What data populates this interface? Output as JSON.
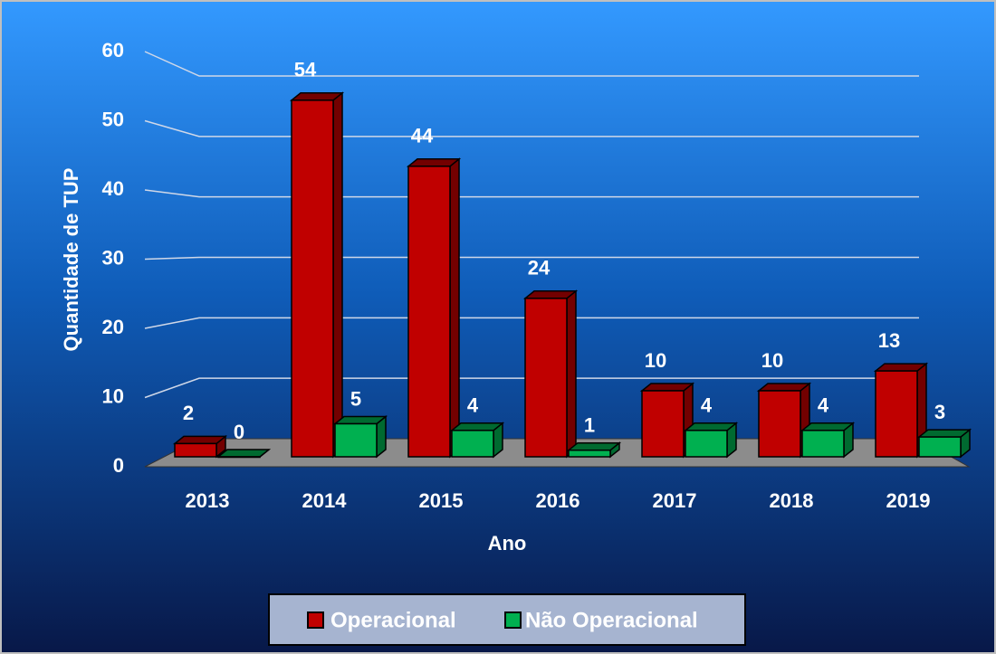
{
  "chart_data": {
    "type": "bar",
    "categories": [
      "2013",
      "2014",
      "2015",
      "2016",
      "2017",
      "2018",
      "2019"
    ],
    "series": [
      {
        "name": "Operacional",
        "color": "#c00000",
        "values": [
          2,
          54,
          44,
          24,
          10,
          10,
          13
        ]
      },
      {
        "name": "Não Operacional",
        "color": "#00b050",
        "values": [
          0,
          5,
          4,
          1,
          4,
          4,
          3
        ]
      }
    ],
    "x_label": "Ano",
    "y_label": "Quantidade de TUP",
    "ylim": [
      0,
      60
    ],
    "yticks": [
      0,
      10,
      20,
      30,
      40,
      50,
      60
    ],
    "grid": true,
    "legend": "bottom"
  }
}
